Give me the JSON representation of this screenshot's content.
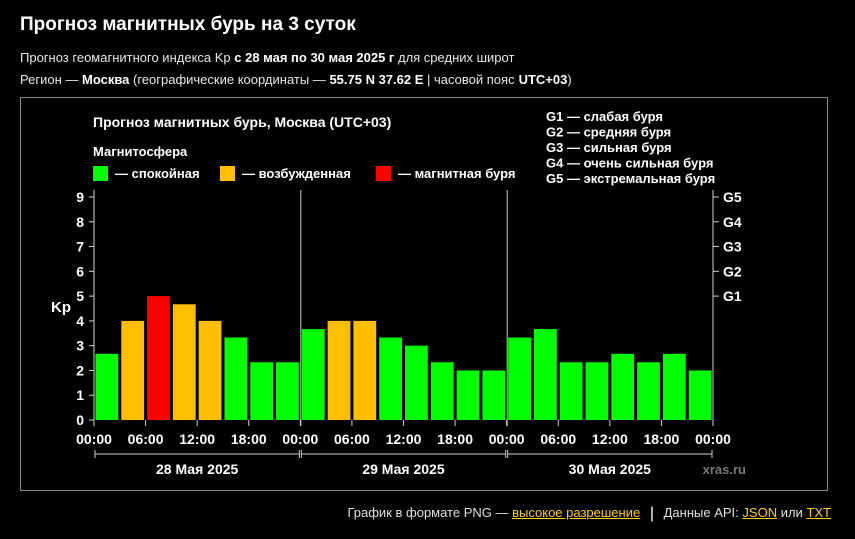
{
  "header": {
    "title": "Прогноз магнитных бурь на 3 суток",
    "line1_prefix": "Прогноз геомагнитного индекса Kp",
    "line1_range": "с 28 мая по 30 мая 2025 г",
    "line1_suffix": "для средних широт",
    "line2_prefix": "Регион —",
    "line2_region": "Москва",
    "line2_coords_label": "(географические координаты —",
    "line2_coords": "55.75 N 37.62 E",
    "line2_tz_label": "| часовой пояс",
    "line2_tz": "UTC+03",
    "line2_close": ")"
  },
  "footer": {
    "png_label": "График в формате PNG —",
    "png_link": "высокое разрешение",
    "api_label": "Данные API:",
    "json_link": "JSON",
    "or_label": "или",
    "txt_link": "TXT"
  },
  "colors": {
    "quiet": "#00ff00",
    "disturbed": "#ffbf00",
    "storm": "#ff0000",
    "background": "#000000",
    "text": "#ffffff"
  },
  "chart_data": {
    "type": "bar",
    "title": "Прогноз магнитных бурь, Москва (UTC+03)",
    "ylabel": "Kp",
    "ylim": [
      0,
      9
    ],
    "yticks": [
      "0",
      "1",
      "2",
      "3",
      "4",
      "5",
      "6",
      "7",
      "8",
      "9"
    ],
    "right_ticks": [
      {
        "kp": 5,
        "label": "G1"
      },
      {
        "kp": 6,
        "label": "G2"
      },
      {
        "kp": 7,
        "label": "G3"
      },
      {
        "kp": 8,
        "label": "G4"
      },
      {
        "kp": 9,
        "label": "G5"
      }
    ],
    "legend_title": "Магнитосфера",
    "legend": [
      {
        "label": "— спокойная",
        "color": "#00ff00"
      },
      {
        "label": "— возбужденная",
        "color": "#ffbf00"
      },
      {
        "label": "— магнитная буря",
        "color": "#ff0000"
      }
    ],
    "g_scale": [
      "G1 — слабая буря",
      "G2 — средняя буря",
      "G3 — сильная буря",
      "G4 — очень сильная буря",
      "G5 — экстремальная буря"
    ],
    "xticks": [
      "00:00",
      "06:00",
      "12:00",
      "18:00",
      "00:00",
      "06:00",
      "12:00",
      "18:00",
      "00:00",
      "06:00",
      "12:00",
      "18:00",
      "00:00"
    ],
    "days": [
      "28 Мая 2025",
      "29 Мая 2025",
      "30 Мая 2025"
    ],
    "watermark": "xras.ru",
    "values": [
      2.67,
      4.0,
      5.0,
      4.67,
      4.0,
      3.33,
      2.33,
      2.33,
      3.67,
      4.0,
      4.0,
      3.33,
      3.0,
      2.33,
      2.0,
      2.0,
      3.33,
      3.67,
      2.33,
      2.33,
      2.67,
      2.33,
      2.67,
      2.0
    ]
  }
}
